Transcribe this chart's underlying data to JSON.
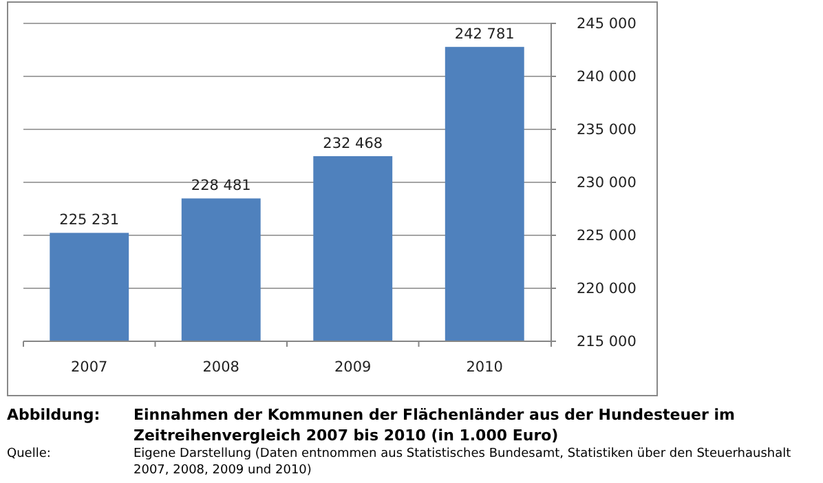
{
  "chart_data": {
    "type": "bar",
    "title": "Einnahmen der Kommunen der Flächenländer aus der Hundesteuer im Zeitreihenvergleich 2007 bis 2010 (in 1.000 Euro)",
    "categories": [
      "2007",
      "2008",
      "2009",
      "2010"
    ],
    "values": [
      225231,
      228481,
      232468,
      242781
    ],
    "value_labels": [
      "225 231",
      "228 481",
      "232 468",
      "242 781"
    ],
    "color": "#4f81bd",
    "ylim": [
      215000,
      245000
    ],
    "yticks": [
      {
        "value": 215000,
        "label": "215 000"
      },
      {
        "value": 220000,
        "label": "220 000"
      },
      {
        "value": 225000,
        "label": "225 000"
      },
      {
        "value": 230000,
        "label": "230 000"
      },
      {
        "value": 235000,
        "label": "235 000"
      },
      {
        "value": 240000,
        "label": "240 000"
      },
      {
        "value": 245000,
        "label": "245 000"
      }
    ],
    "grid": "y",
    "annotations": [
      "Abbildung:",
      "Quelle:",
      "Eigene Darstellung (Daten entnommen aus Statistisches Bundesamt, Statistiken über den Steuerhaushalt 2007, 2008, 2009 und 2010)"
    ]
  }
}
